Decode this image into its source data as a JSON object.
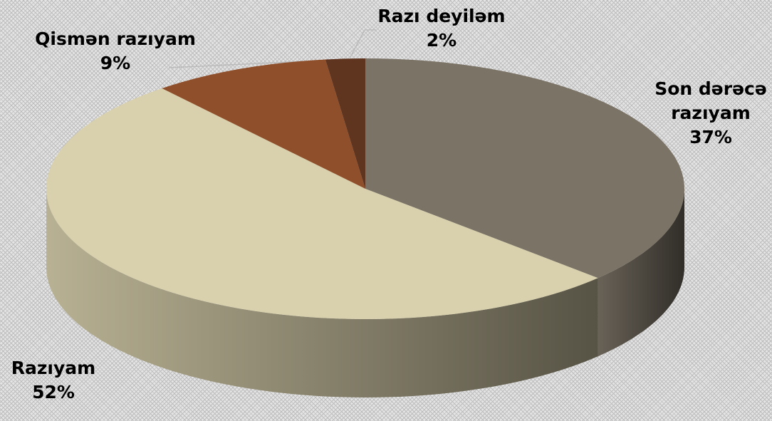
{
  "chart_data": {
    "type": "pie",
    "categories": [
      "Son dərəcə razıyam",
      "Razıyam",
      "Qismən razıyam",
      "Razı deyiləm"
    ],
    "values": [
      37,
      52,
      9,
      2
    ],
    "value_labels": [
      "37%",
      "52%",
      "9%",
      "2%"
    ],
    "colors": [
      "#7b7366",
      "#d9d0ad",
      "#8f4f2b",
      "#5f3520"
    ]
  }
}
